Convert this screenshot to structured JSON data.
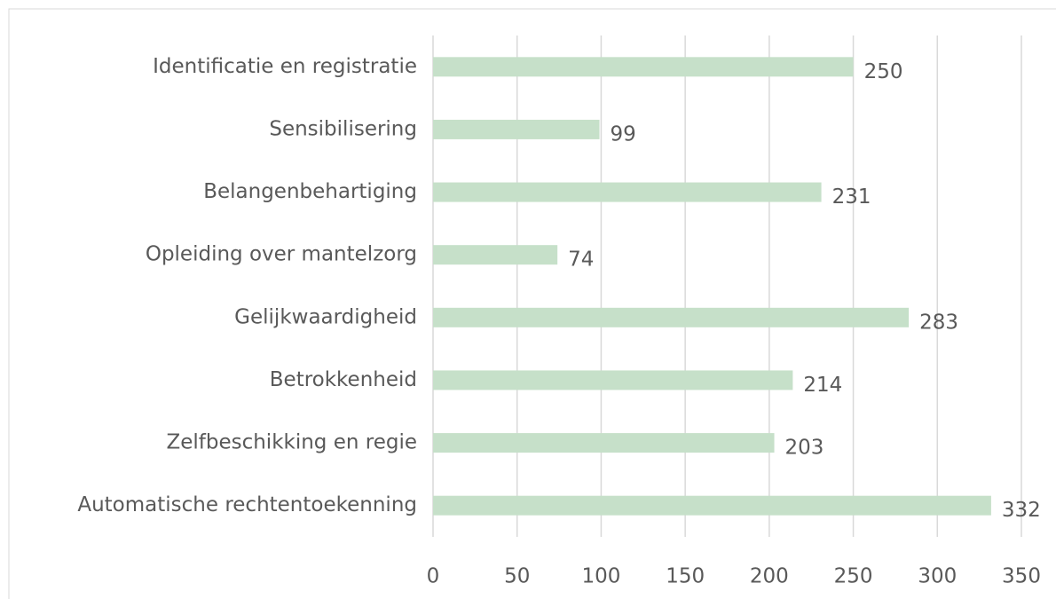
{
  "chart_data": {
    "type": "barh",
    "categories": [
      "Identificatie en registratie",
      "Sensibilisering",
      "Belangenbehartiging",
      "Opleiding over mantelzorg",
      "Gelijkwaardigheid",
      "Betrokkenheid",
      "Zelfbeschikking en regie",
      "Automatische rechtentoekenning"
    ],
    "values": [
      250,
      99,
      231,
      74,
      283,
      214,
      203,
      332
    ],
    "color": "#c6e0c9",
    "xlim": [
      0,
      350
    ],
    "xticks": [
      0,
      50,
      100,
      150,
      200,
      250,
      300,
      350
    ],
    "grid": true
  }
}
